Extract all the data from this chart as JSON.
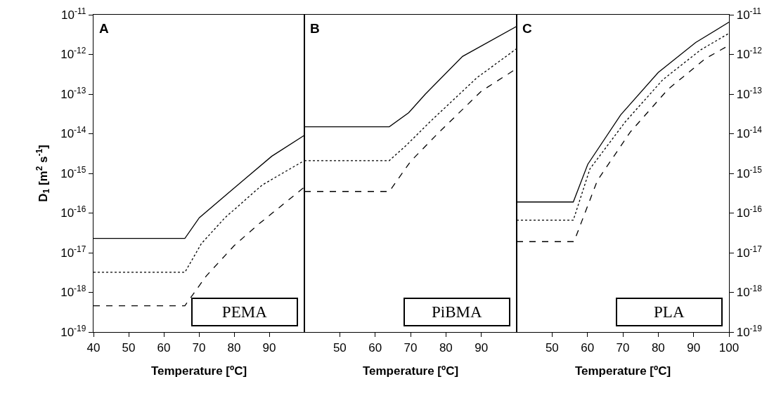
{
  "chart_data": [
    {
      "type": "line",
      "title": "A",
      "xlabel": "Temperature [ºC]",
      "ylabel": "D$_{1}$ [m$^{2}$ s$^{-1}$]",
      "annotations": [
        "PEMA"
      ],
      "log": true,
      "xlim": [
        40,
        100
      ],
      "xticks": [
        40,
        50,
        60,
        70,
        80,
        90
      ],
      "ylim": [
        1e-19,
        1e-11
      ],
      "yticks": [
        {
          "value": 1e-19,
          "label": "10$^{-19}$"
        },
        {
          "value": 1e-18,
          "label": "10$^{-18}$"
        },
        {
          "value": 1e-17,
          "label": "10$^{-17}$"
        },
        {
          "value": 1e-16,
          "label": "10$^{-16}$"
        },
        {
          "value": 1e-15,
          "label": "10$^{-15}$"
        },
        {
          "value": 1e-14,
          "label": "10$^{-14}$"
        },
        {
          "value": 1e-13,
          "label": "10$^{-13}$"
        },
        {
          "value": 1e-12,
          "label": "10$^{-12}$"
        },
        {
          "value": 1e-11,
          "label": "10$^{-11}$"
        }
      ],
      "series": [
        {
          "color": "#000000",
          "line_style": "solid",
          "x": [
            40,
            66,
            70.1,
            78.7,
            90.7,
            100
          ],
          "values": [
            2.3e-17,
            2.3e-17,
            7.6e-17,
            3.4e-16,
            2.7e-15,
            9.1e-15
          ]
        },
        {
          "color": "#000000",
          "line_style": "dotted",
          "x": [
            40,
            66,
            70.7,
            77.4,
            88.0,
            100
          ],
          "values": [
            3.2e-18,
            3.2e-18,
            1.7e-17,
            7.6e-17,
            5.1e-16,
            2.1e-15
          ]
        },
        {
          "color": "#000000",
          "line_style": "dashed",
          "x": [
            40,
            66,
            72.1,
            80.0,
            86.7,
            100
          ],
          "values": [
            4.6e-19,
            4.6e-19,
            2.6e-18,
            1.5e-17,
            5e-17,
            4.5e-16
          ]
        }
      ]
    },
    {
      "type": "line",
      "title": "B",
      "xlabel": "Temperature [ºC]",
      "annotations": [
        "PiBMA"
      ],
      "log": true,
      "tick_labels": "x",
      "xlim": [
        40,
        100
      ],
      "xticks": [
        50,
        60,
        70,
        80,
        90
      ],
      "ylim": [
        1e-19,
        1e-11
      ],
      "series": [
        {
          "color": "#000000",
          "line_style": "solid",
          "x": [
            40,
            64,
            69.5,
            74.2,
            84.7,
            100
          ],
          "values": [
            1.5e-14,
            1.5e-14,
            3.4e-14,
            1e-13,
            8.9e-13,
            5.1e-12
          ]
        },
        {
          "color": "#000000",
          "line_style": "dotted",
          "x": [
            40,
            64,
            68.8,
            75.5,
            88.8,
            100
          ],
          "values": [
            2.1e-15,
            2.1e-15,
            5.1e-15,
            2e-14,
            2.6e-13,
            1.4e-12
          ]
        },
        {
          "color": "#000000",
          "line_style": "dashed",
          "x": [
            40,
            64,
            70.0,
            78.1,
            90.1,
            100
          ],
          "values": [
            3.5e-16,
            3.5e-16,
            2e-15,
            1.1e-14,
            1.2e-13,
            4.4e-13
          ]
        }
      ]
    },
    {
      "type": "line",
      "title": "C",
      "xlabel": "Temperature [ºC]",
      "annotations": [
        "PLA"
      ],
      "log": "y2",
      "xlim": [
        40,
        100
      ],
      "xticks": [
        50,
        60,
        70,
        80,
        90,
        100
      ],
      "y2lim": [
        1e-19,
        1e-11
      ],
      "y2ticks": [
        {
          "value": 1e-19,
          "label": "10$^{-19}$"
        },
        {
          "value": 1e-18,
          "label": "10$^{-18}$"
        },
        {
          "value": 1e-17,
          "label": "10$^{-17}$"
        },
        {
          "value": 1e-16,
          "label": "10$^{-16}$"
        },
        {
          "value": 1e-15,
          "label": "10$^{-15}$"
        },
        {
          "value": 1e-14,
          "label": "10$^{-14}$"
        },
        {
          "value": 1e-13,
          "label": "10$^{-13}$"
        },
        {
          "value": 1e-12,
          "label": "10$^{-12}$"
        },
        {
          "value": 1e-11,
          "label": "10$^{-11}$"
        }
      ],
      "series": [
        {
          "color": "#000000",
          "line_style": "solid",
          "axis": "y2",
          "x": [
            40,
            56,
            60.1,
            69.4,
            80.0,
            90.6,
            100
          ],
          "values": [
            1.9e-16,
            1.9e-16,
            1.7e-15,
            3e-14,
            3.5e-13,
            2e-12,
            6.5e-12
          ]
        },
        {
          "color": "#000000",
          "line_style": "dotted",
          "axis": "y2",
          "x": [
            40,
            56,
            60.7,
            70.7,
            81.3,
            92.0,
            100
          ],
          "values": [
            6.6e-17,
            6.6e-17,
            1.3e-15,
            2e-14,
            2.3e-13,
            1.3e-12,
            3.4e-12
          ]
        },
        {
          "color": "#000000",
          "line_style": "dashed",
          "axis": "y2",
          "x": [
            40,
            56.2,
            62.8,
            72.1,
            82.7,
            93.3,
            100
          ],
          "values": [
            1.9e-17,
            1.9e-17,
            6.6e-16,
            1.1e-14,
            1.3e-13,
            7.8e-13,
            1.7e-12
          ]
        }
      ]
    }
  ]
}
